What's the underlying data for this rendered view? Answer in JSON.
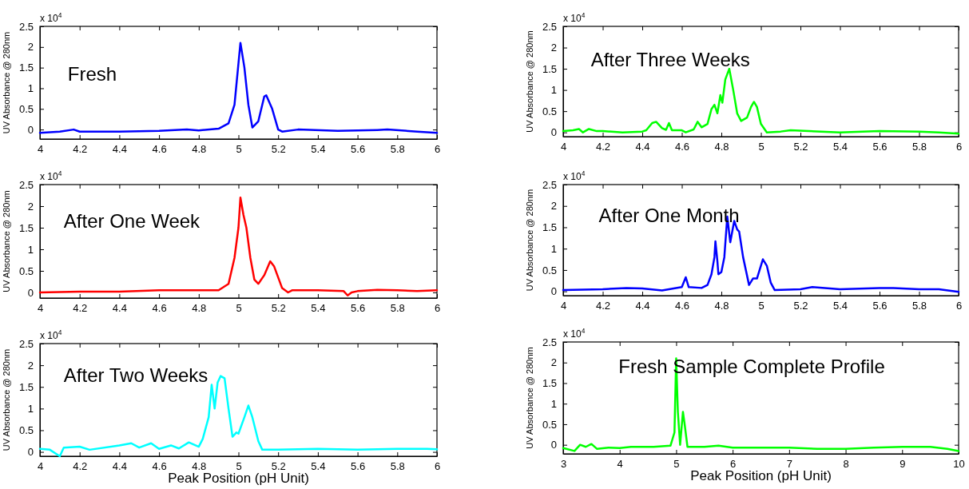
{
  "chart_data": [
    {
      "type": "line",
      "title": "Fresh",
      "ylabel": "UV Absorbance @ 280nm",
      "annotations": [
        "x 10$^{4}$"
      ],
      "xlim": [
        4,
        6
      ],
      "xticks": [
        4,
        4.2,
        4.4,
        4.6,
        4.8,
        5,
        5.2,
        5.4,
        5.6,
        5.8,
        6
      ],
      "ylim": [
        -0.23,
        2.5
      ],
      "yticks": [
        0,
        0.5,
        1,
        1.5,
        2,
        2.5
      ],
      "grid": false,
      "marker": "none",
      "line_style": "solid",
      "series": [
        {
          "color": "#0000ff",
          "x": [
            4,
            4.1,
            4.17,
            4.2,
            4.4,
            4.6,
            4.74,
            4.8,
            4.9,
            4.95,
            4.98,
            5,
            5.01,
            5.03,
            5.05,
            5.07,
            5.1,
            5.13,
            5.14,
            5.17,
            5.2,
            5.22,
            5.3,
            5.5,
            5.7,
            5.75,
            5.9,
            6
          ],
          "values": [
            -0.08,
            -0.05,
            0,
            -0.05,
            -0.05,
            -0.03,
            0,
            -0.02,
            0.02,
            0.15,
            0.6,
            1.6,
            2.1,
            1.5,
            0.6,
            0.05,
            0.2,
            0.8,
            0.83,
            0.5,
            0,
            -0.05,
            0,
            -0.03,
            -0.01,
            0,
            -0.05,
            -0.08
          ]
        }
      ]
    },
    {
      "type": "line",
      "title": "After Three Weeks",
      "ylabel": "UV Absorbance @ 280nm",
      "annotations": [
        "x 10$^{4}$"
      ],
      "xlim": [
        4,
        6
      ],
      "xticks": [
        4,
        4.2,
        4.4,
        4.6,
        4.8,
        5,
        5.2,
        5.4,
        5.6,
        5.8,
        6
      ],
      "ylim": [
        -0.1,
        2.5
      ],
      "yticks": [
        0,
        0.5,
        1,
        1.5,
        2,
        2.5
      ],
      "grid": false,
      "marker": "none",
      "line_style": "solid",
      "series": [
        {
          "color": "#00ff00",
          "x": [
            4,
            4.05,
            4.08,
            4.1,
            4.13,
            4.17,
            4.2,
            4.3,
            4.4,
            4.42,
            4.45,
            4.47,
            4.5,
            4.52,
            4.535,
            4.55,
            4.6,
            4.62,
            4.66,
            4.68,
            4.7,
            4.73,
            4.75,
            4.765,
            4.78,
            4.795,
            4.805,
            4.82,
            4.84,
            4.86,
            4.88,
            4.9,
            4.93,
            4.95,
            4.965,
            4.98,
            5,
            5.03,
            5.1,
            5.15,
            5.4,
            5.6,
            5.8,
            5.9,
            6
          ],
          "values": [
            0.03,
            0.05,
            0.08,
            0,
            0.08,
            0.03,
            0.03,
            0,
            0.02,
            0.05,
            0.22,
            0.25,
            0.1,
            0.06,
            0.22,
            0.05,
            0.05,
            0,
            0.07,
            0.25,
            0.12,
            0.2,
            0.55,
            0.65,
            0.45,
            0.88,
            0.7,
            1.25,
            1.5,
            1,
            0.45,
            0.27,
            0.35,
            0.6,
            0.72,
            0.6,
            0.2,
            0,
            0.02,
            0.05,
            0,
            0.03,
            0.02,
            0,
            -0.03
          ]
        }
      ]
    },
    {
      "type": "line",
      "title": "After One Week",
      "ylabel": "UV Absorbance @ 280nm",
      "annotations": [
        "x 10$^{4}$"
      ],
      "xlim": [
        4,
        6
      ],
      "xticks": [
        4,
        4.2,
        4.4,
        4.6,
        4.8,
        5,
        5.2,
        5.4,
        5.6,
        5.8,
        6
      ],
      "ylim": [
        -0.13,
        2.5
      ],
      "yticks": [
        0,
        0.5,
        1,
        1.5,
        2,
        2.5
      ],
      "grid": false,
      "marker": "none",
      "line_style": "solid",
      "series": [
        {
          "color": "#ff0000",
          "x": [
            4,
            4.2,
            4.4,
            4.6,
            4.8,
            4.9,
            4.95,
            4.98,
            5,
            5.01,
            5.025,
            5.04,
            5.06,
            5.08,
            5.1,
            5.13,
            5.16,
            5.18,
            5.22,
            5.25,
            5.27,
            5.4,
            5.53,
            5.55,
            5.57,
            5.6,
            5.7,
            5.8,
            5.9,
            6
          ],
          "values": [
            0,
            0.02,
            0.02,
            0.05,
            0.05,
            0.05,
            0.2,
            0.8,
            1.5,
            2.2,
            1.8,
            1.5,
            0.8,
            0.3,
            0.2,
            0.4,
            0.72,
            0.6,
            0.1,
            0,
            0.05,
            0.05,
            0.03,
            -0.07,
            0,
            0.03,
            0.06,
            0.05,
            0.03,
            0.05
          ]
        }
      ]
    },
    {
      "type": "line",
      "title": "After One Month",
      "ylabel": "UV Absorbance @ 280nm",
      "annotations": [
        "x 10$^{4}$"
      ],
      "xlim": [
        4,
        6
      ],
      "xticks": [
        4,
        4.2,
        4.4,
        4.6,
        4.8,
        5,
        5.2,
        5.4,
        5.6,
        5.8,
        6
      ],
      "ylim": [
        -0.1,
        2.5
      ],
      "yticks": [
        0,
        0.5,
        1,
        1.5,
        2,
        2.5
      ],
      "grid": false,
      "marker": "none",
      "line_style": "solid",
      "series": [
        {
          "color": "#0000ff",
          "x": [
            4,
            4.2,
            4.32,
            4.4,
            4.5,
            4.6,
            4.62,
            4.635,
            4.7,
            4.73,
            4.75,
            4.765,
            4.77,
            4.78,
            4.785,
            4.8,
            4.815,
            4.83,
            4.845,
            4.865,
            4.88,
            4.89,
            4.91,
            4.94,
            4.96,
            4.98,
            4.99,
            5.01,
            5.03,
            5.05,
            5.07,
            5.2,
            5.26,
            5.4,
            5.6,
            5.67,
            5.8,
            5.9,
            6
          ],
          "values": [
            0.03,
            0.05,
            0.08,
            0.07,
            0.02,
            0.1,
            0.33,
            0.1,
            0.08,
            0.15,
            0.4,
            0.8,
            1.17,
            0.7,
            0.4,
            0.45,
            0.8,
            1.75,
            1.15,
            1.65,
            1.45,
            1.4,
            0.8,
            0.15,
            0.3,
            0.3,
            0.45,
            0.75,
            0.6,
            0.2,
            0.03,
            0.05,
            0.1,
            0.05,
            0.08,
            0.08,
            0.05,
            0.05,
            -0.01
          ]
        }
      ]
    },
    {
      "type": "line",
      "title": "After Two Weeks",
      "xlabel": "Peak Position (pH Unit)",
      "ylabel": "UV Absorbance @ 280nm",
      "annotations": [
        "x 10$^{4}$"
      ],
      "xlim": [
        4,
        6
      ],
      "xticks": [
        4,
        4.2,
        4.4,
        4.6,
        4.8,
        5,
        5.2,
        5.4,
        5.6,
        5.8,
        6
      ],
      "ylim": [
        -0.1,
        2.5
      ],
      "yticks": [
        0,
        0.5,
        1,
        1.5,
        2,
        2.5
      ],
      "grid": false,
      "marker": "none",
      "line_style": "solid",
      "series": [
        {
          "color": "#00ffff",
          "x": [
            4,
            4.05,
            4.1,
            4.12,
            4.2,
            4.25,
            4.4,
            4.46,
            4.5,
            4.56,
            4.6,
            4.66,
            4.7,
            4.75,
            4.8,
            4.82,
            4.85,
            4.865,
            4.88,
            4.895,
            4.91,
            4.93,
            4.95,
            4.97,
            4.99,
            5,
            5.03,
            5.05,
            5.07,
            5.1,
            5.12,
            5.2,
            5.4,
            5.6,
            5.8,
            5.95,
            6
          ],
          "values": [
            0.07,
            0.05,
            -0.1,
            0.1,
            0.12,
            0.05,
            0.15,
            0.2,
            0.1,
            0.2,
            0.07,
            0.15,
            0.08,
            0.22,
            0.12,
            0.3,
            0.8,
            1.55,
            1,
            1.6,
            1.75,
            1.7,
            1,
            0.35,
            0.45,
            0.42,
            0.8,
            1.07,
            0.8,
            0.25,
            0.05,
            0.05,
            0.07,
            0.05,
            0.07,
            0.07,
            0.06
          ]
        }
      ]
    },
    {
      "type": "line",
      "title": "Fresh Sample Complete Profile",
      "xlabel": "Peak Position (pH Unit)",
      "ylabel": "UV Absorbance @ 280nm",
      "annotations": [
        "x 10$^{4}$"
      ],
      "xlim": [
        3,
        10
      ],
      "xticks": [
        3,
        4,
        5,
        6,
        7,
        8,
        9,
        10
      ],
      "ylim": [
        -0.22,
        2.5
      ],
      "yticks": [
        0,
        0.5,
        1,
        1.5,
        2,
        2.5
      ],
      "grid": false,
      "marker": "none",
      "line_style": "solid",
      "series": [
        {
          "color": "#00ff00",
          "x": [
            3,
            3.2,
            3.3,
            3.4,
            3.5,
            3.6,
            3.8,
            4,
            4.2,
            4.6,
            4.9,
            4.97,
            5,
            5.03,
            5.07,
            5.12,
            5.15,
            5.2,
            5.5,
            5.75,
            6,
            7,
            7.5,
            8,
            8.5,
            9,
            9.5,
            9.8,
            10
          ],
          "values": [
            -0.08,
            -0.15,
            0,
            -0.05,
            0.02,
            -0.1,
            -0.07,
            -0.08,
            -0.05,
            -0.05,
            -0.02,
            0.3,
            2.1,
            0.8,
            0,
            0.8,
            0.5,
            -0.05,
            -0.05,
            -0.02,
            -0.07,
            -0.07,
            -0.1,
            -0.1,
            -0.07,
            -0.05,
            -0.05,
            -0.1,
            -0.15
          ]
        }
      ]
    }
  ]
}
